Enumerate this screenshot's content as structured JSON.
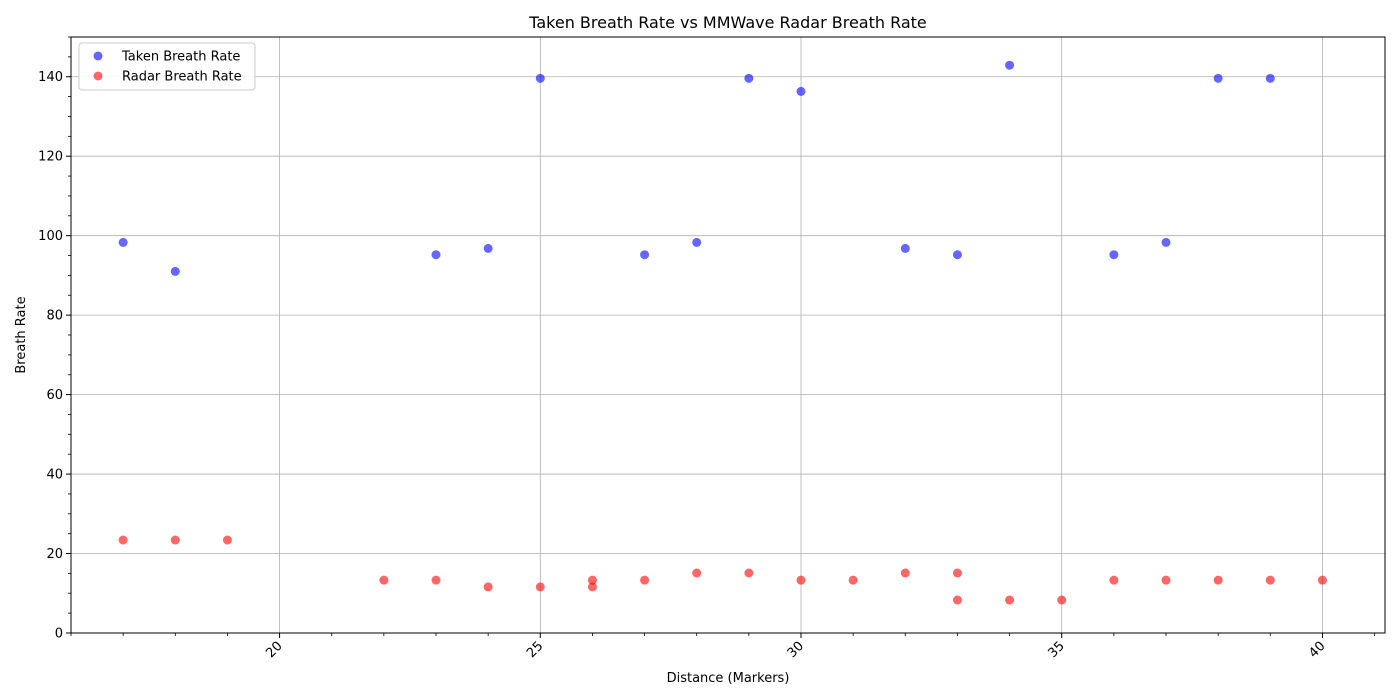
{
  "chart_data": {
    "type": "scatter",
    "title": "Taken Breath Rate vs MMWave Radar Breath Rate",
    "xlabel": "Distance (Markers)",
    "ylabel": "Breath Rate",
    "xlim": [
      16,
      41.2
    ],
    "ylim": [
      0,
      150
    ],
    "x_ticks": [
      20,
      25,
      30,
      35,
      40
    ],
    "y_ticks": [
      0,
      20,
      40,
      60,
      80,
      100,
      120,
      140
    ],
    "grid": true,
    "legend_position": "top-left",
    "series": [
      {
        "name": "Taken Breath Rate",
        "color": "#0000ff",
        "x": [
          17,
          18,
          23,
          24,
          25,
          27,
          28,
          29,
          30,
          32,
          33,
          34,
          36,
          37,
          38,
          39
        ],
        "y": [
          98.3,
          91.0,
          95.2,
          96.8,
          139.6,
          95.2,
          98.3,
          139.6,
          136.3,
          96.8,
          95.2,
          142.9,
          95.2,
          98.3,
          139.6,
          139.6
        ]
      },
      {
        "name": "Radar Breath Rate",
        "color": "#ff0000",
        "x": [
          17,
          18,
          19,
          22,
          23,
          24,
          25,
          26,
          26,
          27,
          28,
          29,
          30,
          31,
          32,
          33,
          33,
          34,
          35,
          36,
          37,
          38,
          39,
          40
        ],
        "y": [
          23.4,
          23.4,
          23.4,
          13.3,
          13.3,
          11.6,
          11.6,
          13.3,
          11.6,
          13.3,
          15.1,
          15.1,
          13.3,
          13.3,
          15.1,
          15.1,
          8.3,
          8.3,
          8.3,
          13.3,
          13.3,
          13.3,
          13.3,
          13.3
        ]
      }
    ]
  }
}
